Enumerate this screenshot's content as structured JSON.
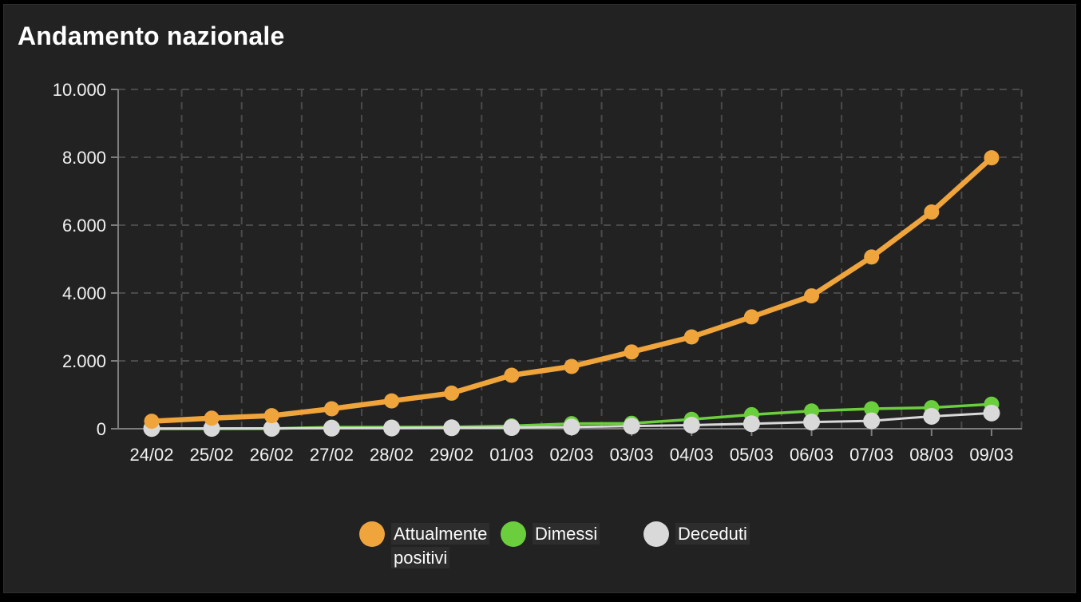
{
  "page": {
    "title": "Andamento nazionale"
  },
  "chart_data": {
    "type": "line",
    "title": "Andamento nazionale",
    "categories": [
      "24/02",
      "25/02",
      "26/02",
      "27/02",
      "28/02",
      "29/02",
      "01/03",
      "02/03",
      "03/03",
      "04/03",
      "05/03",
      "06/03",
      "07/03",
      "08/03",
      "09/03"
    ],
    "series": [
      {
        "name": "Attualmente positivi",
        "color": "#efa43c",
        "values": [
          221,
          311,
          385,
          588,
          821,
          1049,
          1577,
          1835,
          2263,
          2706,
          3296,
          3916,
          5061,
          6387,
          7985
        ]
      },
      {
        "name": "Dimessi",
        "color": "#6bce3c",
        "values": [
          1,
          1,
          3,
          45,
          46,
          50,
          83,
          149,
          160,
          276,
          414,
          523,
          589,
          622,
          724
        ]
      },
      {
        "name": "Deceduti",
        "color": "#d9d9d9",
        "values": [
          7,
          10,
          12,
          17,
          21,
          29,
          34,
          52,
          79,
          107,
          148,
          197,
          233,
          366,
          463
        ]
      }
    ],
    "ylim": [
      0,
      10000
    ],
    "y_tick_interval": 2000,
    "y_tick_labels": [
      "0",
      "2.000",
      "4.000",
      "6.000",
      "8.000",
      "10.000"
    ],
    "xlabel": "",
    "ylabel": "",
    "grid": "dashed",
    "legend_position": "bottom"
  },
  "colors": {
    "page_background": "#000000",
    "panel_background": "#222222",
    "grid_line": "#4a4a4a",
    "axis_line": "#7d7d7d",
    "tick_text": "#f2f2f2",
    "title_text": "#ffffff",
    "legend_text": "#fafafa"
  }
}
